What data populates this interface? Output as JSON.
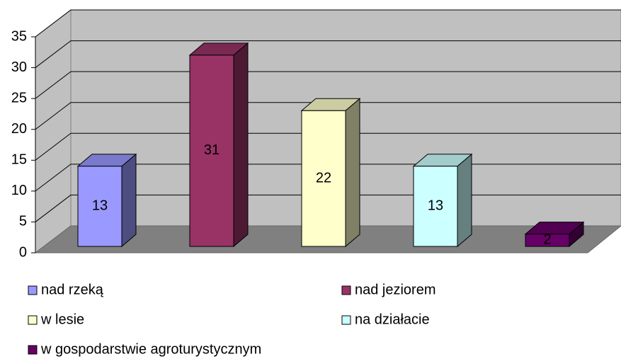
{
  "chart_data": {
    "type": "bar3d",
    "series": [
      {
        "name": "nad rzeką",
        "color": "#9999ff",
        "values": [
          13
        ]
      },
      {
        "name": "nad jeziorem",
        "color": "#993366",
        "values": [
          31
        ]
      },
      {
        "name": "w lesie",
        "color": "#ffffcc",
        "values": [
          22
        ]
      },
      {
        "name": "na działacie",
        "color": "#ccffff",
        "values": [
          13
        ]
      },
      {
        "name": "w gospodarstwie agroturystycznym",
        "color": "#660066",
        "values": [
          2
        ]
      }
    ],
    "ylim": [
      0,
      35
    ],
    "yticks": [
      0,
      5,
      10,
      15,
      20,
      25,
      30,
      35
    ],
    "grid": true,
    "legend": "bottom"
  }
}
